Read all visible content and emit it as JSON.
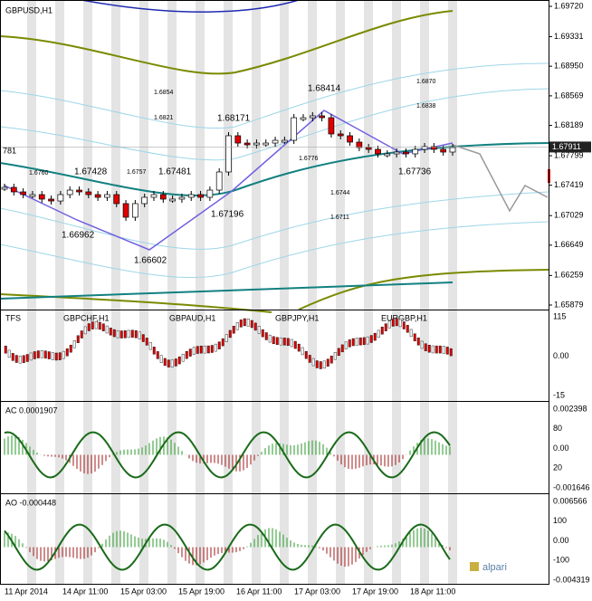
{
  "main": {
    "title": "GBPUSD,H1",
    "left_label": "781",
    "price_ticks": [
      {
        "value": 1.6972,
        "label": "1.69720"
      },
      {
        "value": 1.69331,
        "label": "1.69331"
      },
      {
        "value": 1.6895,
        "label": "1.68950"
      },
      {
        "value": 1.68569,
        "label": "1.68569"
      },
      {
        "value": 1.68189,
        "label": "1.68189"
      },
      {
        "value": 1.67799,
        "label": "1.67799"
      },
      {
        "value": 1.67419,
        "label": "1.67419"
      },
      {
        "value": 1.67029,
        "label": "1.67029"
      },
      {
        "value": 1.66649,
        "label": "1.66649"
      },
      {
        "value": 1.66259,
        "label": "1.66259"
      },
      {
        "value": 1.65879,
        "label": "1.65879"
      }
    ],
    "price_range": [
      1.65879,
      1.6972
    ],
    "current_price": {
      "value": 1.67911,
      "label": "1.67911"
    },
    "closes": [
      1.67392,
      1.67334,
      1.67299,
      1.67299,
      1.67241,
      1.67217,
      1.67299,
      1.67357,
      1.67334,
      1.67299,
      1.67264,
      1.67299,
      1.67183,
      1.67008,
      1.67183,
      1.67264,
      1.67299,
      1.67241,
      1.67241,
      1.67264,
      1.67299,
      1.67264,
      1.67357,
      1.6759,
      1.68056,
      1.67962,
      1.67939,
      1.67962,
      1.67962,
      1.67997,
      1.67997,
      1.68288,
      1.68288,
      1.68312,
      1.68288,
      1.68079,
      1.68056,
      1.67974,
      1.67904,
      1.67881,
      1.67823,
      1.67823,
      1.67846,
      1.67823,
      1.67881,
      1.67916,
      1.67881,
      1.67846,
      1.67904
    ],
    "annotations": [
      "1.6760",
      "1.67428",
      "1.6757",
      "1.67481",
      "1.6854",
      "1.6821",
      "1.68171",
      "1.68414",
      "1.6870",
      "1.6838",
      "1.6776",
      "1.6744",
      "1.6711",
      "1.66962",
      "1.66602",
      "1.67196",
      "1.67736"
    ]
  },
  "panels": [
    {
      "title": "TFS",
      "symbols": [
        "GBPCHF,H1",
        "GBPAUD,H1",
        "GBPJPY,H1",
        "EURGBP,H1"
      ],
      "ticks": [
        "115",
        "0.00",
        "-15"
      ]
    },
    {
      "title": "AC 0.0001907",
      "ticks": [
        "0.002398",
        "80",
        "0.00",
        "20",
        "-0.001646"
      ]
    },
    {
      "title": "AO -0.000448",
      "ticks": [
        "0.006566",
        "100",
        "0.00",
        "-100",
        "-0.004319"
      ]
    }
  ],
  "time_axis": [
    "11 Apr 2014",
    "14 Apr 11:00",
    "15 Apr 03:00",
    "15 Apr 19:00",
    "16 Apr 11:00",
    "17 Apr 03:00",
    "17 Apr 19:00",
    "18 Apr 11:00"
  ],
  "logo": "alpari"
}
